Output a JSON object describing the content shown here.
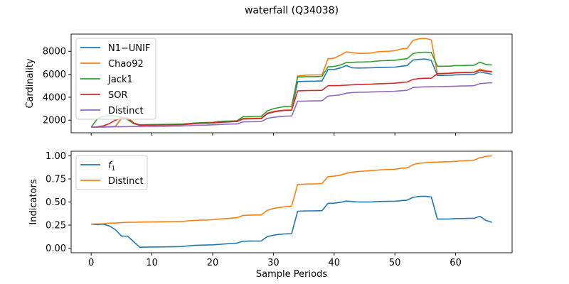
{
  "figure": {
    "title": "waterfall (Q34038)"
  },
  "colors": {
    "N1-UNIF": "#1f77b4",
    "Chao92": "#ff7f0e",
    "Jack1": "#2ca02c",
    "SOR": "#d62728",
    "Distinct": "#9467bd",
    "f1": "#1f77b4",
    "DistinctFrac": "#ff7f0e"
  },
  "chart_data": [
    {
      "type": "line",
      "xlabel": "",
      "ylabel": "Cardinality",
      "xlim": [
        -3.3,
        69.3
      ],
      "ylim": [
        900,
        9500
      ],
      "yticks": [
        2000,
        4000,
        6000,
        8000
      ],
      "ytick_labels": [
        "2000",
        "4000",
        "6000",
        "8000"
      ],
      "xticks": [
        0,
        10,
        20,
        30,
        40,
        50,
        60
      ],
      "legend": "upper-left",
      "x": [
        0,
        1,
        2,
        3,
        4,
        5,
        6,
        7,
        8,
        9,
        10,
        11,
        12,
        13,
        14,
        15,
        16,
        17,
        18,
        19,
        20,
        21,
        22,
        23,
        24,
        25,
        26,
        27,
        28,
        29,
        30,
        31,
        32,
        33,
        34,
        35,
        36,
        37,
        38,
        39,
        40,
        41,
        42,
        43,
        44,
        45,
        46,
        47,
        48,
        49,
        50,
        51,
        52,
        53,
        54,
        55,
        56,
        57,
        58,
        59,
        60,
        61,
        62,
        63,
        64,
        65,
        66
      ],
      "series": [
        {
          "name": "N1−UNIF",
          "color_key": "N1-UNIF",
          "values": [
            1380,
            1400,
            1420,
            1440,
            1450,
            2150,
            2150,
            1700,
            1550,
            1560,
            1570,
            1575,
            1580,
            1585,
            1590,
            1600,
            1650,
            1700,
            1720,
            1730,
            1750,
            1800,
            1830,
            1860,
            1880,
            2100,
            2110,
            2120,
            2130,
            2550,
            2700,
            2800,
            2850,
            2860,
            5350,
            5380,
            5390,
            5400,
            5420,
            6400,
            6420,
            6550,
            6750,
            6560,
            6540,
            6550,
            6560,
            6580,
            6600,
            6610,
            6620,
            6700,
            6750,
            7250,
            7300,
            7320,
            7200,
            5900,
            5900,
            5910,
            5950,
            5960,
            5970,
            5980,
            6200,
            6100,
            6000
          ]
        },
        {
          "name": "Chao92",
          "color_key": "Chao92",
          "values": [
            1380,
            1400,
            1420,
            1440,
            1450,
            2200,
            2200,
            1750,
            1580,
            1590,
            1600,
            1605,
            1610,
            1615,
            1620,
            1630,
            1680,
            1730,
            1750,
            1760,
            1780,
            1820,
            1860,
            1880,
            1900,
            2150,
            2160,
            2170,
            2180,
            2600,
            2750,
            2830,
            2880,
            2890,
            5850,
            5900,
            5930,
            5940,
            5950,
            7350,
            7400,
            7650,
            7950,
            7880,
            7820,
            7820,
            7840,
            7950,
            7980,
            8000,
            8050,
            8200,
            8250,
            8950,
            9100,
            9130,
            9000,
            6050,
            6080,
            6100,
            6150,
            6160,
            6170,
            6180,
            6450,
            6300,
            6250
          ]
        },
        {
          "name": "Jack1",
          "color_key": "Jack1",
          "values": [
            1380,
            2100,
            2350,
            2400,
            2350,
            2250,
            2050,
            1700,
            1600,
            1610,
            1620,
            1625,
            1630,
            1640,
            1650,
            1660,
            1700,
            1750,
            1780,
            1790,
            1810,
            1880,
            1910,
            1930,
            1950,
            2300,
            2310,
            2320,
            2330,
            2800,
            3000,
            3100,
            3200,
            3210,
            5750,
            5780,
            5790,
            5800,
            5820,
            6650,
            6680,
            6800,
            7020,
            7040,
            7060,
            7070,
            7090,
            7150,
            7180,
            7200,
            7220,
            7300,
            7350,
            7800,
            7900,
            7920,
            7900,
            6700,
            6700,
            6710,
            6750,
            6760,
            6770,
            6780,
            7050,
            6850,
            6800
          ]
        },
        {
          "name": "SOR",
          "color_key": "SOR",
          "values": [
            1380,
            1420,
            1500,
            1700,
            2000,
            2200,
            2200,
            1750,
            1560,
            1570,
            1580,
            1585,
            1590,
            1595,
            1600,
            1610,
            1660,
            1710,
            1730,
            1740,
            1760,
            1810,
            1840,
            1870,
            1890,
            2110,
            2120,
            2130,
            2140,
            2600,
            2720,
            2810,
            2860,
            2870,
            4550,
            4570,
            4580,
            4590,
            4600,
            5000,
            5010,
            5020,
            5050,
            5080,
            5100,
            5120,
            5130,
            5160,
            5180,
            5200,
            5220,
            5280,
            5320,
            5550,
            5620,
            5650,
            5660,
            6050,
            6060,
            6080,
            6120,
            6140,
            6150,
            6160,
            6350,
            6250,
            6200
          ]
        },
        {
          "name": "Distinct",
          "color_key": "Distinct",
          "values": [
            1380,
            1390,
            1400,
            1410,
            1420,
            1430,
            1440,
            1450,
            1450,
            1455,
            1460,
            1465,
            1470,
            1475,
            1480,
            1490,
            1520,
            1550,
            1560,
            1570,
            1590,
            1620,
            1640,
            1660,
            1670,
            1850,
            1860,
            1870,
            1880,
            2150,
            2250,
            2300,
            2350,
            2360,
            3650,
            3660,
            3670,
            3680,
            3690,
            4100,
            4150,
            4200,
            4350,
            4400,
            4430,
            4440,
            4450,
            4470,
            4490,
            4500,
            4520,
            4560,
            4600,
            4850,
            4880,
            4900,
            4910,
            4920,
            4930,
            4940,
            4960,
            4980,
            4990,
            5000,
            5180,
            5230,
            5250
          ]
        }
      ]
    },
    {
      "type": "line",
      "xlabel": "Sample Periods",
      "ylabel": "Indicators",
      "xlim": [
        -3.3,
        69.3
      ],
      "ylim": [
        -0.05,
        1.05
      ],
      "yticks": [
        0.0,
        0.25,
        0.5,
        0.75,
        1.0
      ],
      "ytick_labels": [
        "0.00",
        "0.25",
        "0.50",
        "0.75",
        "1.00"
      ],
      "xticks": [
        0,
        10,
        20,
        30,
        40,
        50,
        60
      ],
      "xtick_labels": [
        "0",
        "10",
        "20",
        "30",
        "40",
        "50",
        "60"
      ],
      "legend": "upper-left",
      "x": [
        0,
        1,
        2,
        3,
        4,
        5,
        6,
        7,
        8,
        9,
        10,
        11,
        12,
        13,
        14,
        15,
        16,
        17,
        18,
        19,
        20,
        21,
        22,
        23,
        24,
        25,
        26,
        27,
        28,
        29,
        30,
        31,
        32,
        33,
        34,
        35,
        36,
        37,
        38,
        39,
        40,
        41,
        42,
        43,
        44,
        45,
        46,
        47,
        48,
        49,
        50,
        51,
        52,
        53,
        54,
        55,
        56,
        57,
        58,
        59,
        60,
        61,
        62,
        63,
        64,
        65,
        66
      ],
      "series": [
        {
          "name": "f",
          "subscript": "1",
          "color_key": "f1",
          "values": [
            0.26,
            0.255,
            0.26,
            0.24,
            0.2,
            0.13,
            0.13,
            0.07,
            0.01,
            0.011,
            0.012,
            0.013,
            0.014,
            0.015,
            0.016,
            0.018,
            0.025,
            0.03,
            0.032,
            0.034,
            0.036,
            0.04,
            0.045,
            0.05,
            0.055,
            0.075,
            0.076,
            0.077,
            0.078,
            0.125,
            0.14,
            0.15,
            0.155,
            0.156,
            0.4,
            0.402,
            0.404,
            0.405,
            0.406,
            0.485,
            0.487,
            0.495,
            0.51,
            0.505,
            0.5,
            0.5,
            0.5,
            0.505,
            0.506,
            0.507,
            0.508,
            0.515,
            0.52,
            0.55,
            0.56,
            0.562,
            0.555,
            0.315,
            0.315,
            0.316,
            0.32,
            0.321,
            0.322,
            0.323,
            0.345,
            0.3,
            0.28
          ]
        },
        {
          "name": "Distinct",
          "color_key": "DistinctFrac",
          "values": [
            0.26,
            0.262,
            0.265,
            0.27,
            0.272,
            0.276,
            0.28,
            0.281,
            0.282,
            0.283,
            0.284,
            0.285,
            0.286,
            0.287,
            0.288,
            0.29,
            0.295,
            0.3,
            0.303,
            0.305,
            0.308,
            0.315,
            0.32,
            0.325,
            0.33,
            0.355,
            0.357,
            0.359,
            0.36,
            0.41,
            0.43,
            0.44,
            0.45,
            0.455,
            0.69,
            0.693,
            0.695,
            0.697,
            0.7,
            0.775,
            0.78,
            0.79,
            0.81,
            0.825,
            0.83,
            0.835,
            0.84,
            0.845,
            0.85,
            0.852,
            0.855,
            0.865,
            0.87,
            0.905,
            0.92,
            0.925,
            0.93,
            0.932,
            0.935,
            0.937,
            0.94,
            0.945,
            0.95,
            0.952,
            0.98,
            0.995,
            1.0
          ]
        }
      ]
    }
  ]
}
